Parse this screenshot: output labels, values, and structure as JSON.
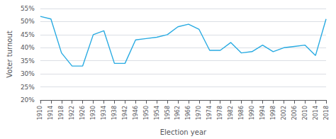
{
  "chart_data": {
    "type": "line",
    "x": [
      1910,
      1914,
      1918,
      1922,
      1926,
      1930,
      1934,
      1938,
      1942,
      1946,
      1950,
      1954,
      1958,
      1962,
      1966,
      1970,
      1974,
      1978,
      1982,
      1986,
      1990,
      1994,
      1998,
      2002,
      2006,
      2010,
      2014,
      2018
    ],
    "values": [
      52,
      51,
      38,
      33,
      33,
      45,
      46.5,
      34,
      34,
      43,
      43.5,
      44,
      45,
      48,
      49,
      47,
      39,
      39,
      42,
      38,
      38.5,
      41,
      38.5,
      40,
      40.5,
      41,
      37,
      51
    ],
    "color": "#29abe2",
    "xlabel": "Election year",
    "ylabel": "Voter turnout",
    "xlim": [
      1910,
      2018
    ],
    "xticks": [
      1910,
      1914,
      1918,
      1922,
      1926,
      1930,
      1934,
      1938,
      1942,
      1946,
      1950,
      1954,
      1958,
      1962,
      1966,
      1970,
      1974,
      1978,
      1982,
      1986,
      1990,
      1994,
      1998,
      2002,
      2006,
      2010,
      2014,
      2018
    ],
    "ylim": [
      20,
      55
    ],
    "yticks": [
      {
        "value": 20,
        "label": "20%"
      },
      {
        "value": 25,
        "label": "25%"
      },
      {
        "value": 30,
        "label": "30%"
      },
      {
        "value": 35,
        "label": "35%"
      },
      {
        "value": 40,
        "label": "40%"
      },
      {
        "value": 45,
        "label": "45%"
      },
      {
        "value": 50,
        "label": "50%"
      },
      {
        "value": 55,
        "label": "55%"
      }
    ],
    "grid": true
  }
}
